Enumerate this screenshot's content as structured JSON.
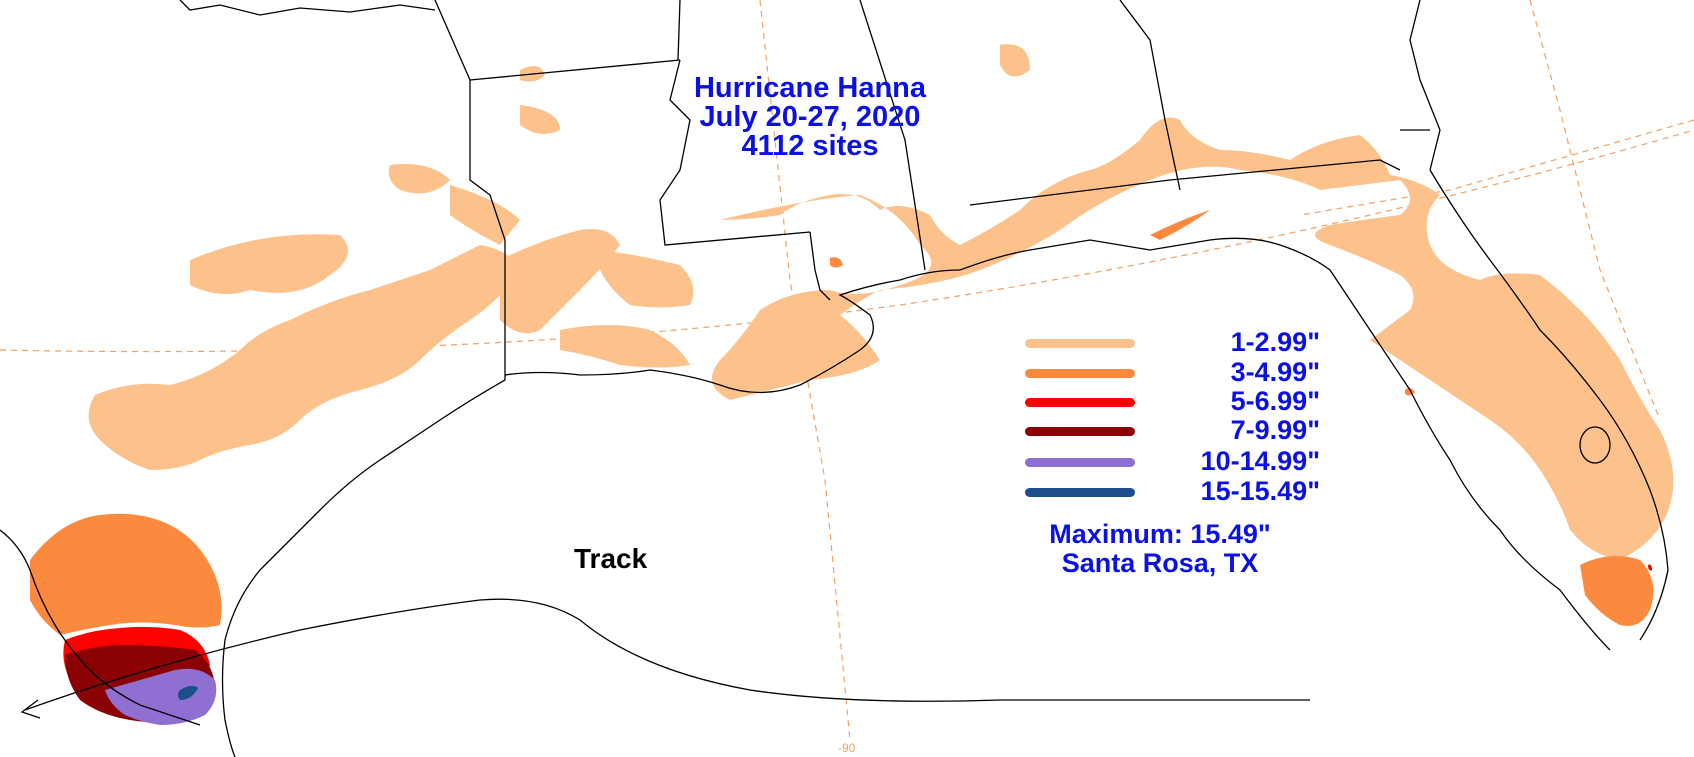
{
  "title": {
    "line1": "Hurricane Hanna",
    "line2": "July 20-27, 2020",
    "line3": "4112 sites"
  },
  "legend": [
    {
      "label": "1-2.99\"",
      "color": "#fdc28b"
    },
    {
      "label": "3-4.99\"",
      "color": "#fb8a3f"
    },
    {
      "label": "5-6.99\"",
      "color": "#fd0000"
    },
    {
      "label": "7-9.99\"",
      "color": "#8a0203"
    },
    {
      "label": "10-14.99\"",
      "color": "#8f70d2"
    },
    {
      "label": "15-15.49\"",
      "color": "#1d4e8c"
    }
  ],
  "maximum": {
    "value_text": "Maximum:  15.49\"",
    "location": "Santa Rosa, TX"
  },
  "track_label": "Track",
  "longitude_tick": "-90",
  "colors": {
    "title_text": "#0b10e6",
    "graticule": "#f4a060",
    "boundary": "#000000"
  }
}
